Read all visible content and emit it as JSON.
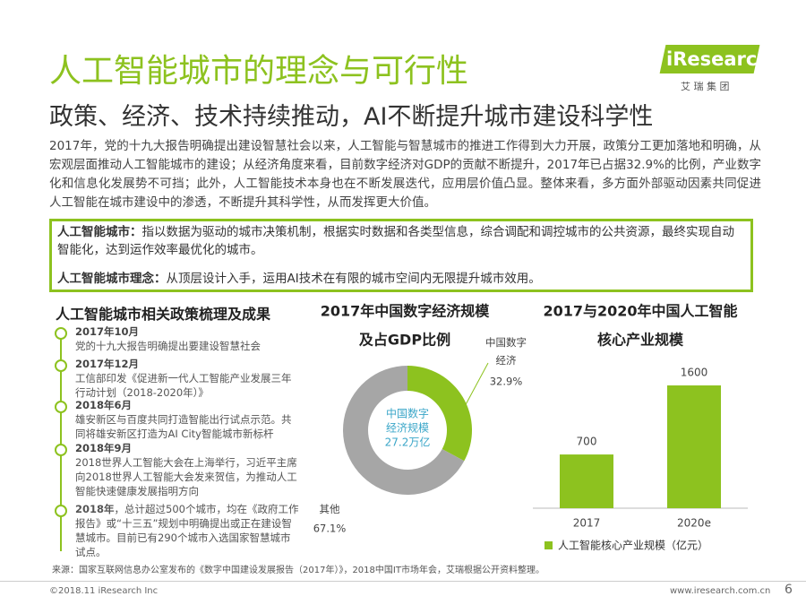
{
  "header": {
    "title": "人工智能城市的理念与可行性",
    "subtitle": "政策、经济、技术持续推动，AI不断提升城市建设科学性",
    "logo": "iResearch",
    "logo_sub": "艾 瑞 集 团"
  },
  "intro": "2017年，党的十九大报告明确提出建设智慧社会以来，人工智能与智慧城市的推进工作得到大力开展，政策分工更加落地和明确，从宏观层面推动人工智能城市的建设；从经济角度来看，目前数字经济对GDP的贡献不断提升，2017年已占据32.9%的比例，产业数字化和信息化发展势不可挡；此外，人工智能技术本身也在不断发展迭代，应用层价值凸显。整体来看，多方面外部驱动因素共同促进人工智能在城市建设中的渗透，不断提升其科学性，从而发挥更大价值。",
  "definitions": [
    {
      "label": "人工智能城市：",
      "text": "指以数据为驱动的城市决策机制，根据实时数据和各类型信息，综合调配和调控城市的公共资源，最终实现自动智能化，达到运作效率最优化的城市。"
    },
    {
      "label": "人工智能城市理念：",
      "text": "从顶层设计入手，运用AI技术在有限的城市空间内无限提升城市效用。"
    }
  ],
  "timeline": {
    "title": "人工智能城市相关政策梳理及成果",
    "items": [
      {
        "date": "2017年10月",
        "text": "党的十九大报告明确提出要建设智慧社会"
      },
      {
        "date": "2017年12月",
        "text": "工信部印发《促进新一代人工智能产业发展三年行动计划（2018-2020年）》"
      },
      {
        "date": "2018年6月",
        "text": "雄安新区与百度共同打造智能出行试点示范。共同将雄安新区打造为AI City智能城市新标杆"
      },
      {
        "date": "2018年9月",
        "text": "2018世界人工智能大会在上海举行，习近平主席向2018世界人工智能大会发来贺信，为推动人工智能快速健康发展指明方向"
      },
      {
        "date": "2018年",
        "text": "，总计超过500个城市，均在《政府工作报告》或“十三五”规划中明确提出或正在建设智慧城市。目前已有290个城市入选国家智慧城市试点。"
      }
    ]
  },
  "chart_data": [
    {
      "type": "pie",
      "title": [
        "2017年中国数字经济规模",
        "及占GDP比例"
      ],
      "categories": [
        "中国数字经济",
        "其他"
      ],
      "values": [
        32.9,
        67.1
      ],
      "value_labels": [
        "32.9%",
        "67.1%"
      ],
      "colors": [
        "#8dc21f",
        "#a6a6a6"
      ],
      "donut": true,
      "center_text": [
        "中国数字",
        "经济规模",
        "27.2万亿"
      ]
    },
    {
      "type": "bar",
      "title": [
        "2017与2020年中国人工智能",
        "核心产业规模"
      ],
      "categories": [
        "2017",
        "2020e"
      ],
      "series": [
        {
          "name": "人工智能核心产业规模（亿元）",
          "color": "#8dc21f",
          "values": [
            700,
            1600
          ]
        }
      ]
    }
  ],
  "source": "来源：国家互联网信息办公室发布的《数字中国建设发展报告（2017年）》，2018中国IT市场年会，艾瑞根据公开资料整理。",
  "footer": {
    "copyright": "©2018.11 iResearch Inc",
    "site": "www.iresearch.com.cn",
    "page": "6"
  }
}
